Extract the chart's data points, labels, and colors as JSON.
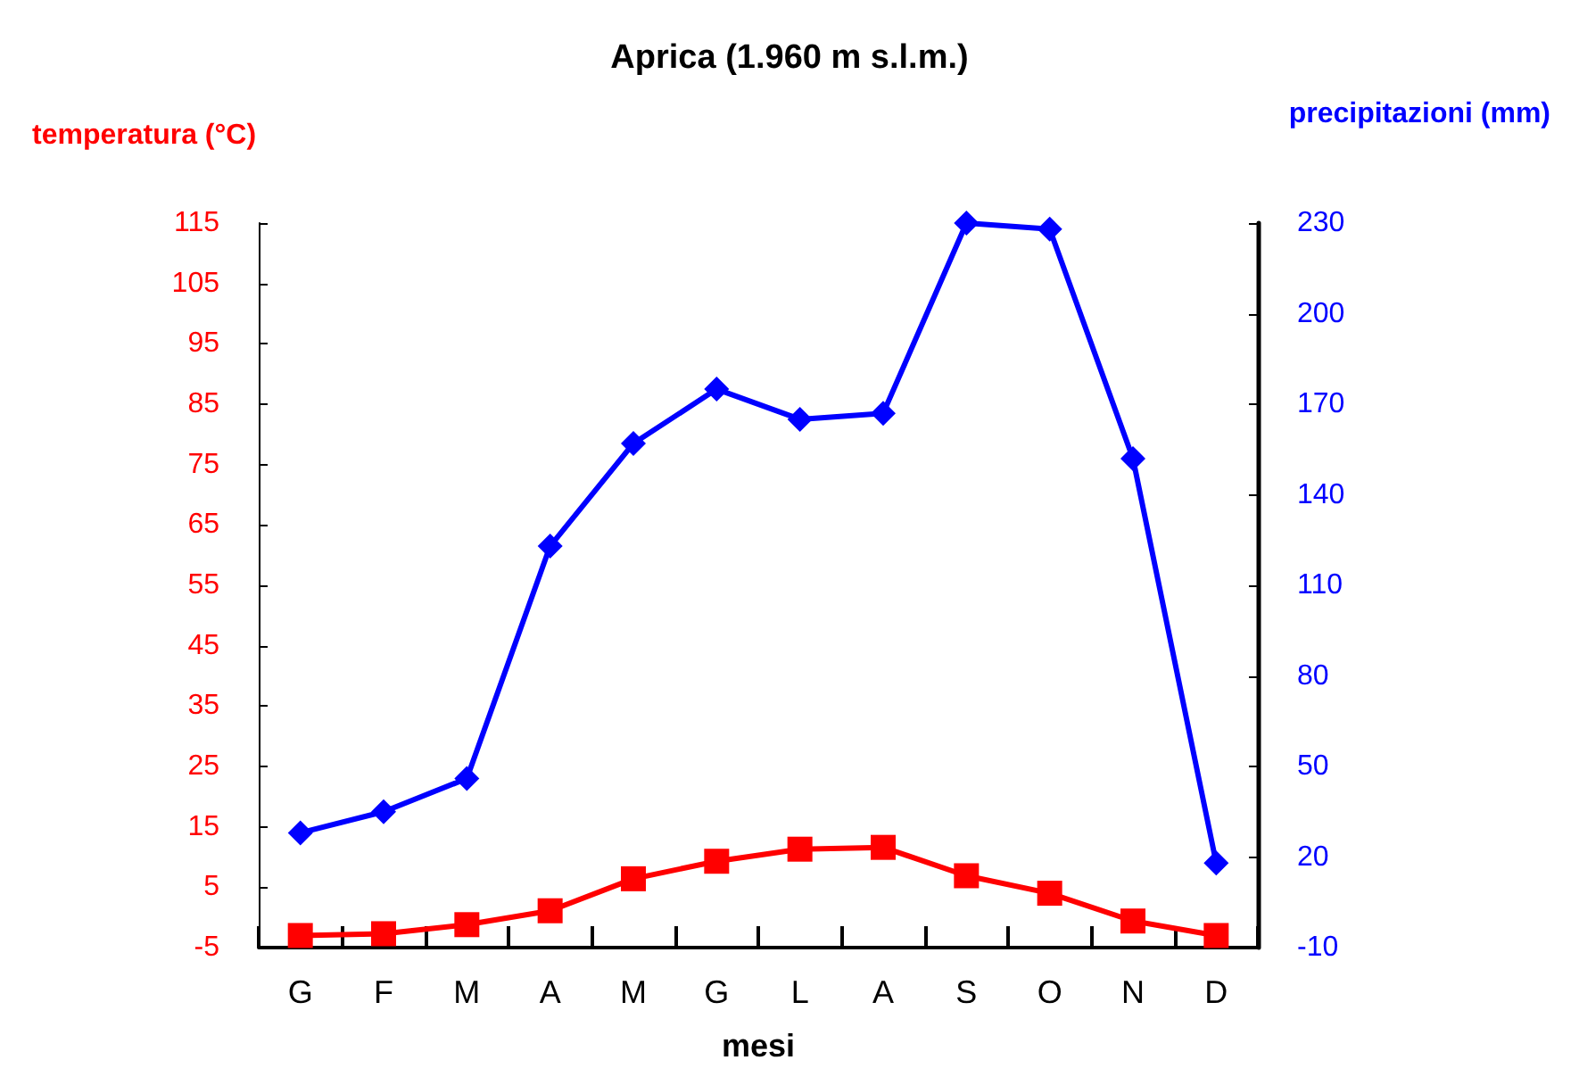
{
  "chart_data": {
    "type": "line",
    "title": "Aprica (1.960 m s.l.m.)",
    "xlabel": "mesi",
    "ylabel": "temperatura (°C)",
    "y2label": "precipitazioni (mm)",
    "categories": [
      "G",
      "F",
      "M",
      "A",
      "M",
      "G",
      "L",
      "A",
      "S",
      "O",
      "N",
      "D"
    ],
    "series": [
      {
        "color": "#ff0000",
        "marker": "square",
        "values": [
          -3.0,
          -2.7,
          -1.2,
          1.1,
          6.4,
          9.3,
          11.3,
          11.6,
          6.9,
          4.0,
          -0.6,
          -3.0
        ]
      },
      {
        "color": "#0000ff",
        "marker": "diamond",
        "axis": "y2",
        "values": [
          28,
          35,
          46,
          123,
          157,
          175,
          165,
          167,
          230,
          228,
          152,
          18
        ]
      }
    ],
    "ylim": [
      -5,
      115
    ],
    "yticks": [
      -5,
      5,
      15,
      25,
      35,
      45,
      55,
      65,
      75,
      85,
      95,
      105,
      115
    ],
    "y2lim": [
      -10,
      230
    ],
    "y2ticks": [
      -10,
      20,
      50,
      80,
      110,
      140,
      170,
      200,
      230
    ],
    "grid": false
  }
}
